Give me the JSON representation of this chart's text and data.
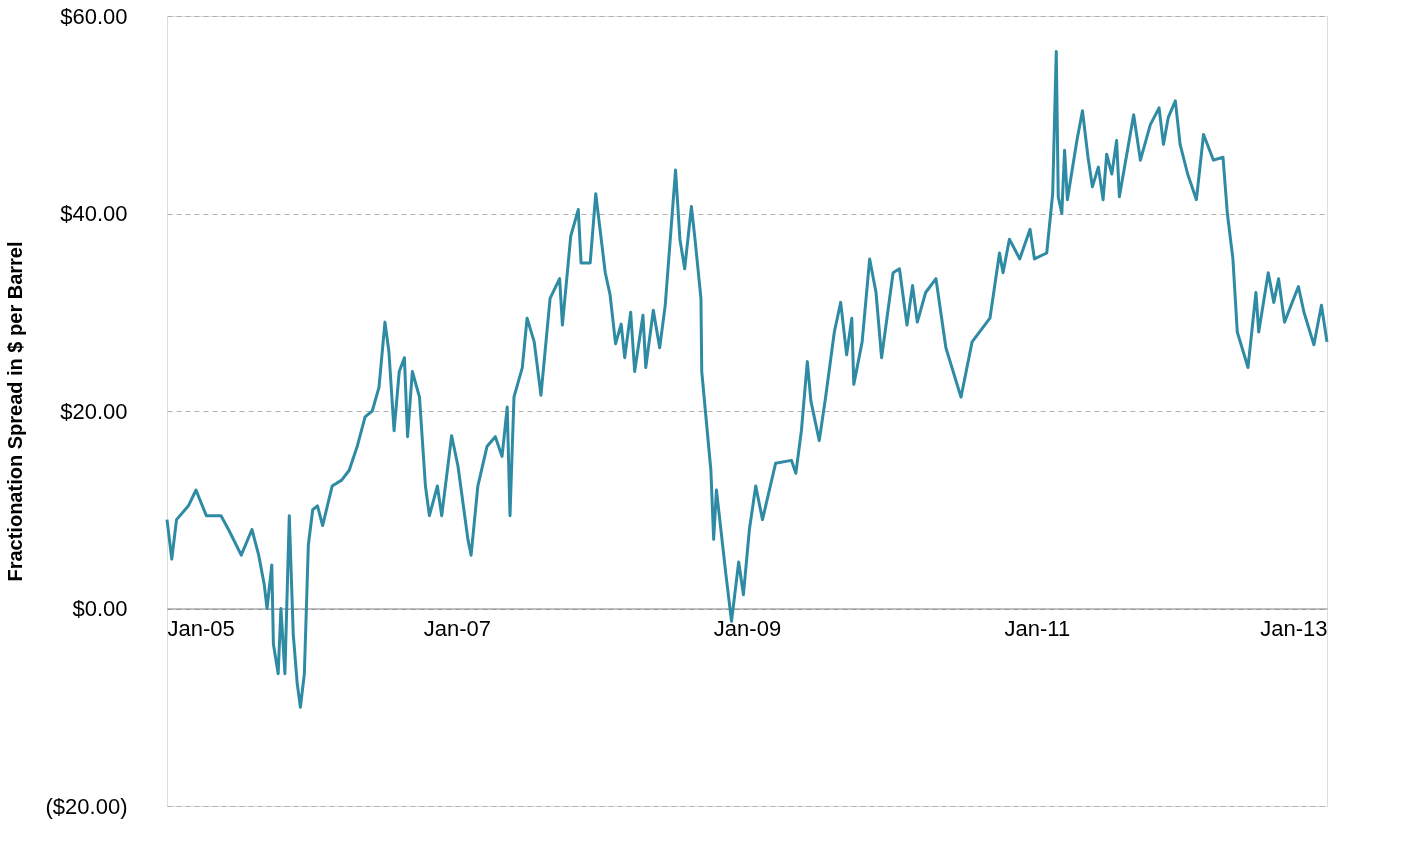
{
  "chart_data": {
    "type": "line",
    "ylabel": "Fractionation Spread in $ per Barrel",
    "x": [
      "2005-01-01",
      "2005-01-13",
      "2005-01-25",
      "2005-02-24",
      "2005-03-15",
      "2005-04-10",
      "2005-05-17",
      "2005-06-05",
      "2005-07-07",
      "2005-08-03",
      "2005-08-20",
      "2005-09-03",
      "2005-09-10",
      "2005-09-22",
      "2005-09-26",
      "2005-10-08",
      "2005-10-15",
      "2005-10-25",
      "2005-11-05",
      "2005-11-15",
      "2005-11-25",
      "2005-12-03",
      "2005-12-13",
      "2005-12-23",
      "2006-01-03",
      "2006-01-15",
      "2006-01-28",
      "2006-02-21",
      "2006-03-17",
      "2006-04-05",
      "2006-04-25",
      "2006-05-15",
      "2006-06-02",
      "2006-06-19",
      "2006-07-04",
      "2006-07-14",
      "2006-07-27",
      "2006-08-09",
      "2006-08-22",
      "2006-08-30",
      "2006-09-11",
      "2006-09-29",
      "2006-10-14",
      "2006-10-24",
      "2006-11-13",
      "2006-11-24",
      "2006-12-19",
      "2007-01-04",
      "2007-01-29",
      "2007-02-06",
      "2007-02-23",
      "2007-03-18",
      "2007-04-08",
      "2007-04-25",
      "2007-05-08",
      "2007-05-15",
      "2007-05-25",
      "2007-06-15",
      "2007-06-27",
      "2007-07-15",
      "2007-08-01",
      "2007-08-24",
      "2007-09-17",
      "2007-09-24",
      "2007-10-15",
      "2007-11-03",
      "2007-11-10",
      "2007-12-03",
      "2007-12-17",
      "2008-01-10",
      "2008-01-22",
      "2008-02-05",
      "2008-02-19",
      "2008-02-28",
      "2008-03-14",
      "2008-03-24",
      "2008-04-14",
      "2008-04-21",
      "2008-05-10",
      "2008-05-26",
      "2008-06-09",
      "2008-07-05",
      "2008-07-16",
      "2008-07-28",
      "2008-08-14",
      "2008-08-23",
      "2008-09-07",
      "2008-09-09",
      "2008-10-02",
      "2008-10-09",
      "2008-10-16",
      "2008-11-09",
      "2008-11-23",
      "2008-12-11",
      "2008-12-23",
      "2009-01-07",
      "2009-01-23",
      "2009-02-09",
      "2009-03-14",
      "2009-04-23",
      "2009-05-04",
      "2009-05-18",
      "2009-06-02",
      "2009-06-11",
      "2009-07-02",
      "2009-07-18",
      "2009-08-09",
      "2009-08-25",
      "2009-09-09",
      "2009-09-22",
      "2009-09-27",
      "2009-10-18",
      "2009-11-06",
      "2009-11-22",
      "2009-12-06",
      "2010-01-04",
      "2010-01-20",
      "2010-02-08",
      "2010-02-22",
      "2010-03-06",
      "2010-03-27",
      "2010-04-22",
      "2010-05-17",
      "2010-06-24",
      "2010-07-22",
      "2010-09-05",
      "2010-09-29",
      "2010-10-08",
      "2010-10-24",
      "2010-11-19",
      "2010-12-15",
      "2010-12-26",
      "2011-01-26",
      "2011-02-10",
      "2011-02-19",
      "2011-02-24",
      "2011-03-05",
      "2011-03-12",
      "2011-03-19",
      "2011-04-12",
      "2011-04-26",
      "2011-05-10",
      "2011-05-21",
      "2011-06-05",
      "2011-06-17",
      "2011-06-26",
      "2011-07-09",
      "2011-07-21",
      "2011-07-28",
      "2011-09-02",
      "2011-09-19",
      "2011-10-14",
      "2011-11-05",
      "2011-11-16",
      "2011-11-28",
      "2011-12-16",
      "2011-12-28",
      "2012-01-16",
      "2012-02-07",
      "2012-02-25",
      "2012-03-21",
      "2012-04-14",
      "2012-04-25",
      "2012-05-09",
      "2012-05-20",
      "2012-06-16",
      "2012-07-06",
      "2012-07-13",
      "2012-08-06",
      "2012-08-20",
      "2012-09-01",
      "2012-09-16",
      "2012-10-21",
      "2012-11-04",
      "2012-11-29",
      "2012-12-18",
      "2013-01-01"
    ],
    "series": [
      {
        "color": "#2e8ba3",
        "values": [
          9,
          5,
          9,
          10.4,
          12,
          9.4,
          9.4,
          8,
          5.4,
          8,
          5.4,
          2.4,
          0,
          4.4,
          -3.6,
          -6.6,
          0,
          -6.6,
          9.4,
          -2.6,
          -7.6,
          -10,
          -6.6,
          6.4,
          10,
          10.4,
          8.4,
          12.4,
          13,
          14,
          16.4,
          19.4,
          20,
          22.4,
          29,
          26,
          18,
          24,
          25.4,
          17.4,
          24,
          21.4,
          12.4,
          9.4,
          12.4,
          9.4,
          17.5,
          14.4,
          7,
          5.4,
          12.4,
          16.4,
          17.4,
          15.4,
          20.4,
          9.4,
          21.4,
          24.4,
          29.4,
          27,
          21.6,
          31.4,
          33.4,
          28.7,
          37.7,
          40.4,
          35,
          35,
          42,
          34,
          31.8,
          26.8,
          28.8,
          25.4,
          30,
          24,
          29.7,
          24.4,
          30.2,
          26.4,
          30.7,
          44.4,
          37.4,
          34.4,
          40.7,
          37.4,
          31.4,
          24,
          14,
          7,
          12,
          3.4,
          -1.3,
          4.7,
          1.4,
          8,
          12.4,
          9,
          14.7,
          15,
          13.7,
          18,
          25,
          21,
          17,
          21.4,
          28,
          31,
          25.7,
          29.4,
          22.7,
          27,
          35.4,
          32,
          25.4,
          34,
          34.4,
          28.7,
          32.7,
          29,
          32,
          33.4,
          26.4,
          21.4,
          27,
          29.4,
          36,
          34,
          37.4,
          35.4,
          38.4,
          35.4,
          36,
          42,
          56.4,
          41.7,
          40,
          46.4,
          41.4,
          47.4,
          50.4,
          45.7,
          42.7,
          44.7,
          41.4,
          46,
          44,
          47.4,
          41.7,
          50,
          45.4,
          49,
          50.7,
          47,
          49.7,
          51.4,
          47,
          44,
          41.4,
          48,
          45.4,
          45.7,
          40,
          35.4,
          28,
          24.4,
          32,
          28,
          34,
          31,
          33.4,
          29,
          32.6,
          30,
          26.7,
          30.7,
          27
        ]
      }
    ],
    "xlim": [
      "2005-01-01",
      "2013-01-01"
    ],
    "xticks": [
      {
        "value": "2005-01-01",
        "label": "Jan-05"
      },
      {
        "value": "2007-01-01",
        "label": "Jan-07"
      },
      {
        "value": "2009-01-01",
        "label": "Jan-09"
      },
      {
        "value": "2011-01-01",
        "label": "Jan-11"
      },
      {
        "value": "2013-01-01",
        "label": "Jan-13"
      }
    ],
    "ylim": [
      -20,
      60
    ],
    "yticks": [
      {
        "value": -20,
        "label": "($20.00)"
      },
      {
        "value": 0,
        "label": "$0.00"
      },
      {
        "value": 20,
        "label": "$20.00"
      },
      {
        "value": 40,
        "label": "$40.00"
      },
      {
        "value": 60,
        "label": "$60.00"
      }
    ],
    "grid": "y",
    "line_style": "solid",
    "marker": "none",
    "legend": false
  }
}
